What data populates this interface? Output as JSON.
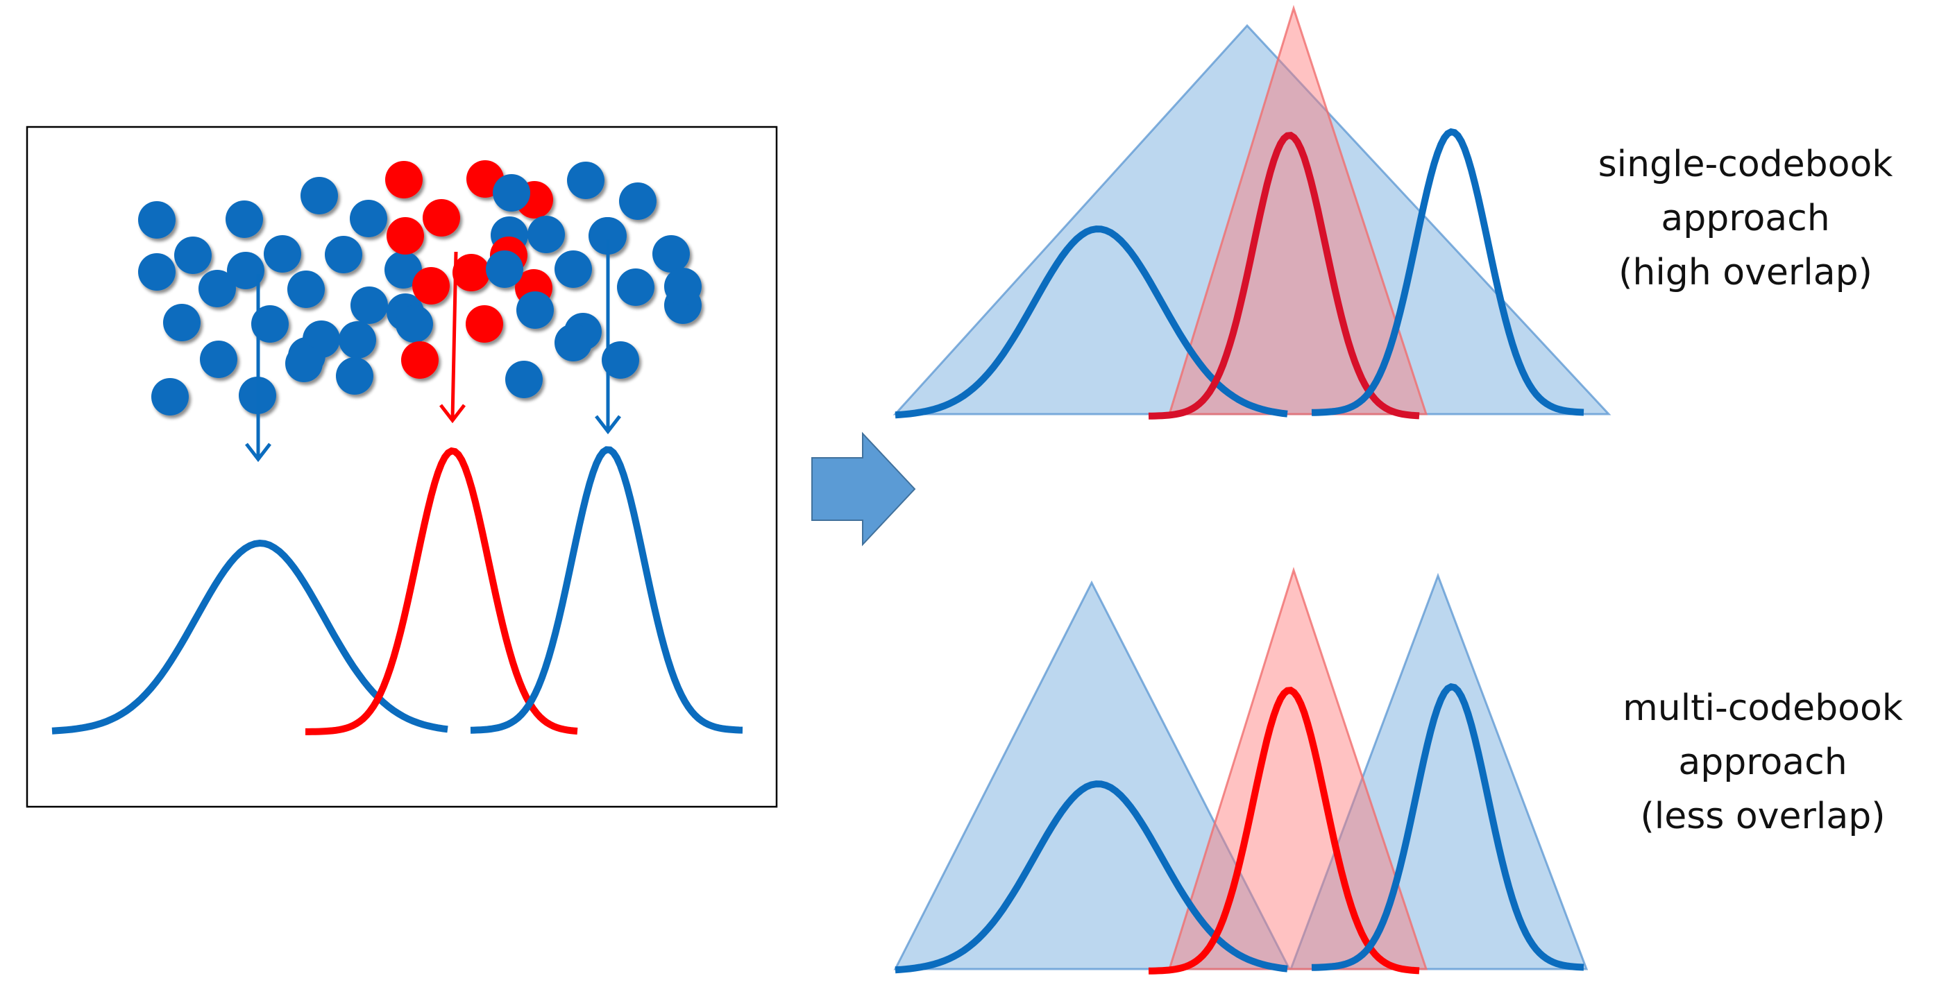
{
  "colors": {
    "blue": "#0b6cbe",
    "red": "#ff0000",
    "dark_red": "#d7102a",
    "triangle_blue": "#7fb3e0",
    "triangle_red": "#ff8a8a",
    "arrow_fill": "#5b9bd5",
    "frame": "#000000"
  },
  "captions": {
    "single": {
      "line1": "single-codebook",
      "line2": "approach",
      "line3": "(high overlap)"
    },
    "multi": {
      "line1": "multi-codebook",
      "line2": "approach",
      "line3": "(less overlap)"
    }
  }
}
